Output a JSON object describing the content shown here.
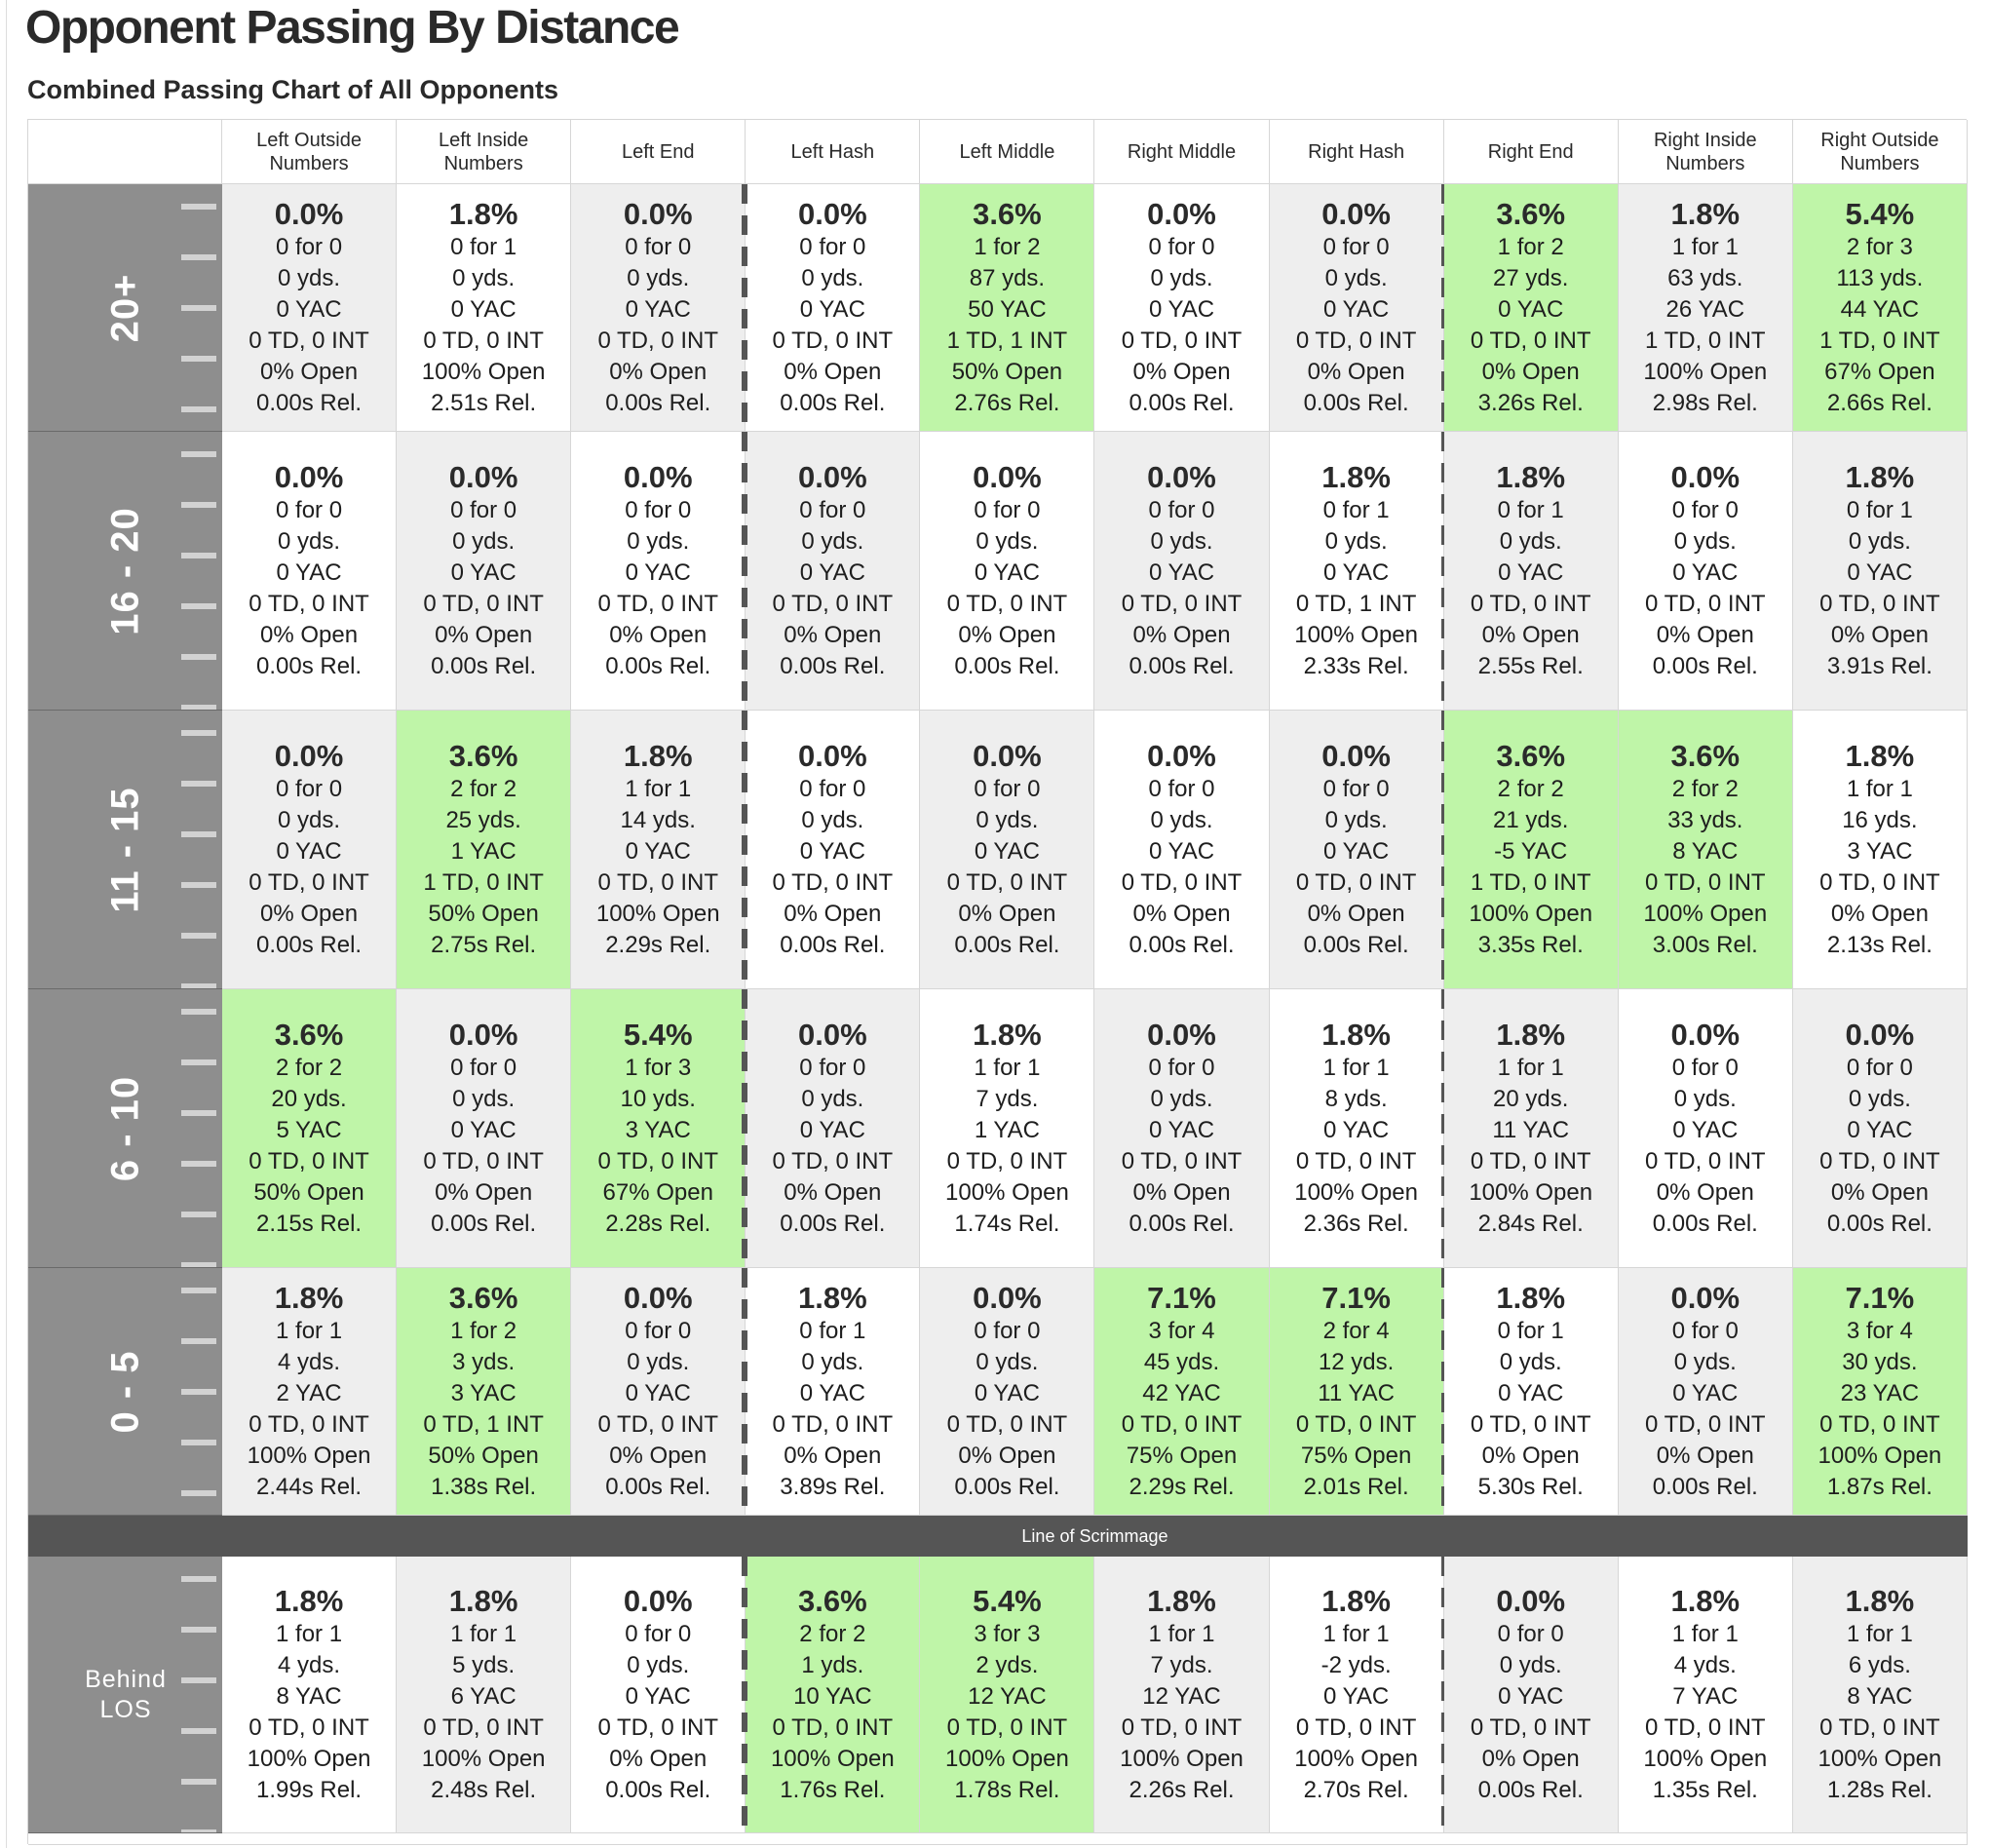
{
  "page": {
    "title": "Opponent Passing By Distance",
    "subtitle": "Combined Passing Chart of All Opponents"
  },
  "columns": [
    "Left Outside Numbers",
    "Left Inside Numbers",
    "Left End",
    "Left Hash",
    "Left Middle",
    "Right Middle",
    "Right Hash",
    "Right End",
    "Right Inside Numbers",
    "Right Outside Numbers"
  ],
  "los_label": "Line of Scrimmage",
  "colors": {
    "highlight": "#bff5a8",
    "shaded": "#eeeeee",
    "row_label_bg": "#8e8e8e",
    "los_bar": "#555555"
  },
  "rows": [
    {
      "label": "20+",
      "cells": [
        {
          "pct": "0.0%",
          "lines": [
            "0 for 0",
            "0 yds.",
            "0 YAC",
            "0 TD, 0 INT",
            "0% Open",
            "0.00s Rel."
          ],
          "highlight": false
        },
        {
          "pct": "1.8%",
          "lines": [
            "0 for 1",
            "0 yds.",
            "0 YAC",
            "0 TD, 0 INT",
            "100% Open",
            "2.51s Rel."
          ],
          "highlight": false
        },
        {
          "pct": "0.0%",
          "lines": [
            "0 for 0",
            "0 yds.",
            "0 YAC",
            "0 TD, 0 INT",
            "0% Open",
            "0.00s Rel."
          ],
          "highlight": false
        },
        {
          "pct": "0.0%",
          "lines": [
            "0 for 0",
            "0 yds.",
            "0 YAC",
            "0 TD, 0 INT",
            "0% Open",
            "0.00s Rel."
          ],
          "highlight": false
        },
        {
          "pct": "3.6%",
          "lines": [
            "1 for 2",
            "87 yds.",
            "50 YAC",
            "1 TD, 1 INT",
            "50% Open",
            "2.76s Rel."
          ],
          "highlight": true
        },
        {
          "pct": "0.0%",
          "lines": [
            "0 for 0",
            "0 yds.",
            "0 YAC",
            "0 TD, 0 INT",
            "0% Open",
            "0.00s Rel."
          ],
          "highlight": false
        },
        {
          "pct": "0.0%",
          "lines": [
            "0 for 0",
            "0 yds.",
            "0 YAC",
            "0 TD, 0 INT",
            "0% Open",
            "0.00s Rel."
          ],
          "highlight": false
        },
        {
          "pct": "3.6%",
          "lines": [
            "1 for 2",
            "27 yds.",
            "0 YAC",
            "0 TD, 0 INT",
            "0% Open",
            "3.26s Rel."
          ],
          "highlight": true
        },
        {
          "pct": "1.8%",
          "lines": [
            "1 for 1",
            "63 yds.",
            "26 YAC",
            "1 TD, 0 INT",
            "100% Open",
            "2.98s Rel."
          ],
          "highlight": false
        },
        {
          "pct": "5.4%",
          "lines": [
            "2 for 3",
            "113 yds.",
            "44 YAC",
            "1 TD, 0 INT",
            "67% Open",
            "2.66s Rel."
          ],
          "highlight": true
        }
      ]
    },
    {
      "label": "16 - 20",
      "cells": [
        {
          "pct": "0.0%",
          "lines": [
            "0 for 0",
            "0 yds.",
            "0 YAC",
            "0 TD, 0 INT",
            "0% Open",
            "0.00s Rel."
          ],
          "highlight": false
        },
        {
          "pct": "0.0%",
          "lines": [
            "0 for 0",
            "0 yds.",
            "0 YAC",
            "0 TD, 0 INT",
            "0% Open",
            "0.00s Rel."
          ],
          "highlight": false
        },
        {
          "pct": "0.0%",
          "lines": [
            "0 for 0",
            "0 yds.",
            "0 YAC",
            "0 TD, 0 INT",
            "0% Open",
            "0.00s Rel."
          ],
          "highlight": false
        },
        {
          "pct": "0.0%",
          "lines": [
            "0 for 0",
            "0 yds.",
            "0 YAC",
            "0 TD, 0 INT",
            "0% Open",
            "0.00s Rel."
          ],
          "highlight": false
        },
        {
          "pct": "0.0%",
          "lines": [
            "0 for 0",
            "0 yds.",
            "0 YAC",
            "0 TD, 0 INT",
            "0% Open",
            "0.00s Rel."
          ],
          "highlight": false
        },
        {
          "pct": "0.0%",
          "lines": [
            "0 for 0",
            "0 yds.",
            "0 YAC",
            "0 TD, 0 INT",
            "0% Open",
            "0.00s Rel."
          ],
          "highlight": false
        },
        {
          "pct": "1.8%",
          "lines": [
            "0 for 1",
            "0 yds.",
            "0 YAC",
            "0 TD, 1 INT",
            "100% Open",
            "2.33s Rel."
          ],
          "highlight": false
        },
        {
          "pct": "1.8%",
          "lines": [
            "0 for 1",
            "0 yds.",
            "0 YAC",
            "0 TD, 0 INT",
            "0% Open",
            "2.55s Rel."
          ],
          "highlight": false
        },
        {
          "pct": "0.0%",
          "lines": [
            "0 for 0",
            "0 yds.",
            "0 YAC",
            "0 TD, 0 INT",
            "0% Open",
            "0.00s Rel."
          ],
          "highlight": false
        },
        {
          "pct": "1.8%",
          "lines": [
            "0 for 1",
            "0 yds.",
            "0 YAC",
            "0 TD, 0 INT",
            "0% Open",
            "3.91s Rel."
          ],
          "highlight": false
        }
      ]
    },
    {
      "label": "11 - 15",
      "cells": [
        {
          "pct": "0.0%",
          "lines": [
            "0 for 0",
            "0 yds.",
            "0 YAC",
            "0 TD, 0 INT",
            "0% Open",
            "0.00s Rel."
          ],
          "highlight": false
        },
        {
          "pct": "3.6%",
          "lines": [
            "2 for 2",
            "25 yds.",
            "1 YAC",
            "1 TD, 0 INT",
            "50% Open",
            "2.75s Rel."
          ],
          "highlight": true
        },
        {
          "pct": "1.8%",
          "lines": [
            "1 for 1",
            "14 yds.",
            "0 YAC",
            "0 TD, 0 INT",
            "100% Open",
            "2.29s Rel."
          ],
          "highlight": false
        },
        {
          "pct": "0.0%",
          "lines": [
            "0 for 0",
            "0 yds.",
            "0 YAC",
            "0 TD, 0 INT",
            "0% Open",
            "0.00s Rel."
          ],
          "highlight": false
        },
        {
          "pct": "0.0%",
          "lines": [
            "0 for 0",
            "0 yds.",
            "0 YAC",
            "0 TD, 0 INT",
            "0% Open",
            "0.00s Rel."
          ],
          "highlight": false
        },
        {
          "pct": "0.0%",
          "lines": [
            "0 for 0",
            "0 yds.",
            "0 YAC",
            "0 TD, 0 INT",
            "0% Open",
            "0.00s Rel."
          ],
          "highlight": false
        },
        {
          "pct": "0.0%",
          "lines": [
            "0 for 0",
            "0 yds.",
            "0 YAC",
            "0 TD, 0 INT",
            "0% Open",
            "0.00s Rel."
          ],
          "highlight": false
        },
        {
          "pct": "3.6%",
          "lines": [
            "2 for 2",
            "21 yds.",
            "-5 YAC",
            "1 TD, 0 INT",
            "100% Open",
            "3.35s Rel."
          ],
          "highlight": true
        },
        {
          "pct": "3.6%",
          "lines": [
            "2 for 2",
            "33 yds.",
            "8 YAC",
            "0 TD, 0 INT",
            "100% Open",
            "3.00s Rel."
          ],
          "highlight": true
        },
        {
          "pct": "1.8%",
          "lines": [
            "1 for 1",
            "16 yds.",
            "3 YAC",
            "0 TD, 0 INT",
            "0% Open",
            "2.13s Rel."
          ],
          "highlight": false
        }
      ]
    },
    {
      "label": "6 - 10",
      "cells": [
        {
          "pct": "3.6%",
          "lines": [
            "2 for 2",
            "20 yds.",
            "5 YAC",
            "0 TD, 0 INT",
            "50% Open",
            "2.15s Rel."
          ],
          "highlight": true
        },
        {
          "pct": "0.0%",
          "lines": [
            "0 for 0",
            "0 yds.",
            "0 YAC",
            "0 TD, 0 INT",
            "0% Open",
            "0.00s Rel."
          ],
          "highlight": false
        },
        {
          "pct": "5.4%",
          "lines": [
            "1 for 3",
            "10 yds.",
            "3 YAC",
            "0 TD, 0 INT",
            "67% Open",
            "2.28s Rel."
          ],
          "highlight": true
        },
        {
          "pct": "0.0%",
          "lines": [
            "0 for 0",
            "0 yds.",
            "0 YAC",
            "0 TD, 0 INT",
            "0% Open",
            "0.00s Rel."
          ],
          "highlight": false
        },
        {
          "pct": "1.8%",
          "lines": [
            "1 for 1",
            "7 yds.",
            "1 YAC",
            "0 TD, 0 INT",
            "100% Open",
            "1.74s Rel."
          ],
          "highlight": false
        },
        {
          "pct": "0.0%",
          "lines": [
            "0 for 0",
            "0 yds.",
            "0 YAC",
            "0 TD, 0 INT",
            "0% Open",
            "0.00s Rel."
          ],
          "highlight": false
        },
        {
          "pct": "1.8%",
          "lines": [
            "1 for 1",
            "8 yds.",
            "0 YAC",
            "0 TD, 0 INT",
            "100% Open",
            "2.36s Rel."
          ],
          "highlight": false
        },
        {
          "pct": "1.8%",
          "lines": [
            "1 for 1",
            "20 yds.",
            "11 YAC",
            "0 TD, 0 INT",
            "100% Open",
            "2.84s Rel."
          ],
          "highlight": false
        },
        {
          "pct": "0.0%",
          "lines": [
            "0 for 0",
            "0 yds.",
            "0 YAC",
            "0 TD, 0 INT",
            "0% Open",
            "0.00s Rel."
          ],
          "highlight": false
        },
        {
          "pct": "0.0%",
          "lines": [
            "0 for 0",
            "0 yds.",
            "0 YAC",
            "0 TD, 0 INT",
            "0% Open",
            "0.00s Rel."
          ],
          "highlight": false
        }
      ]
    },
    {
      "label": "0 - 5",
      "cells": [
        {
          "pct": "1.8%",
          "lines": [
            "1 for 1",
            "4 yds.",
            "2 YAC",
            "0 TD, 0 INT",
            "100% Open",
            "2.44s Rel."
          ],
          "highlight": false
        },
        {
          "pct": "3.6%",
          "lines": [
            "1 for 2",
            "3 yds.",
            "3 YAC",
            "0 TD, 1 INT",
            "50% Open",
            "1.38s Rel."
          ],
          "highlight": true
        },
        {
          "pct": "0.0%",
          "lines": [
            "0 for 0",
            "0 yds.",
            "0 YAC",
            "0 TD, 0 INT",
            "0% Open",
            "0.00s Rel."
          ],
          "highlight": false
        },
        {
          "pct": "1.8%",
          "lines": [
            "0 for 1",
            "0 yds.",
            "0 YAC",
            "0 TD, 0 INT",
            "0% Open",
            "3.89s Rel."
          ],
          "highlight": false
        },
        {
          "pct": "0.0%",
          "lines": [
            "0 for 0",
            "0 yds.",
            "0 YAC",
            "0 TD, 0 INT",
            "0% Open",
            "0.00s Rel."
          ],
          "highlight": false
        },
        {
          "pct": "7.1%",
          "lines": [
            "3 for 4",
            "45 yds.",
            "42 YAC",
            "0 TD, 0 INT",
            "75% Open",
            "2.29s Rel."
          ],
          "highlight": true
        },
        {
          "pct": "7.1%",
          "lines": [
            "2 for 4",
            "12 yds.",
            "11 YAC",
            "0 TD, 0 INT",
            "75% Open",
            "2.01s Rel."
          ],
          "highlight": true
        },
        {
          "pct": "1.8%",
          "lines": [
            "0 for 1",
            "0 yds.",
            "0 YAC",
            "0 TD, 0 INT",
            "0% Open",
            "5.30s Rel."
          ],
          "highlight": false
        },
        {
          "pct": "0.0%",
          "lines": [
            "0 for 0",
            "0 yds.",
            "0 YAC",
            "0 TD, 0 INT",
            "0% Open",
            "0.00s Rel."
          ],
          "highlight": false
        },
        {
          "pct": "7.1%",
          "lines": [
            "3 for 4",
            "30 yds.",
            "23 YAC",
            "0 TD, 0 INT",
            "100% Open",
            "1.87s Rel."
          ],
          "highlight": true
        }
      ]
    },
    {
      "label": "Behind LOS",
      "cells": [
        {
          "pct": "1.8%",
          "lines": [
            "1 for 1",
            "4 yds.",
            "8 YAC",
            "0 TD, 0 INT",
            "100% Open",
            "1.99s Rel."
          ],
          "highlight": false
        },
        {
          "pct": "1.8%",
          "lines": [
            "1 for 1",
            "5 yds.",
            "6 YAC",
            "0 TD, 0 INT",
            "100% Open",
            "2.48s Rel."
          ],
          "highlight": false
        },
        {
          "pct": "0.0%",
          "lines": [
            "0 for 0",
            "0 yds.",
            "0 YAC",
            "0 TD, 0 INT",
            "0% Open",
            "0.00s Rel."
          ],
          "highlight": false
        },
        {
          "pct": "3.6%",
          "lines": [
            "2 for 2",
            "1 yds.",
            "10 YAC",
            "0 TD, 0 INT",
            "100% Open",
            "1.76s Rel."
          ],
          "highlight": true
        },
        {
          "pct": "5.4%",
          "lines": [
            "3 for 3",
            "2 yds.",
            "12 YAC",
            "0 TD, 0 INT",
            "100% Open",
            "1.78s Rel."
          ],
          "highlight": true
        },
        {
          "pct": "1.8%",
          "lines": [
            "1 for 1",
            "7 yds.",
            "12 YAC",
            "0 TD, 0 INT",
            "100% Open",
            "2.26s Rel."
          ],
          "highlight": false
        },
        {
          "pct": "1.8%",
          "lines": [
            "1 for 1",
            "-2 yds.",
            "0 YAC",
            "0 TD, 0 INT",
            "100% Open",
            "2.70s Rel."
          ],
          "highlight": false
        },
        {
          "pct": "0.0%",
          "lines": [
            "0 for 0",
            "0 yds.",
            "0 YAC",
            "0 TD, 0 INT",
            "0% Open",
            "0.00s Rel."
          ],
          "highlight": false
        },
        {
          "pct": "1.8%",
          "lines": [
            "1 for 1",
            "4 yds.",
            "7 YAC",
            "0 TD, 0 INT",
            "100% Open",
            "1.35s Rel."
          ],
          "highlight": false
        },
        {
          "pct": "1.8%",
          "lines": [
            "1 for 1",
            "6 yds.",
            "8 YAC",
            "0 TD, 0 INT",
            "100% Open",
            "1.28s Rel."
          ],
          "highlight": false
        }
      ]
    }
  ]
}
